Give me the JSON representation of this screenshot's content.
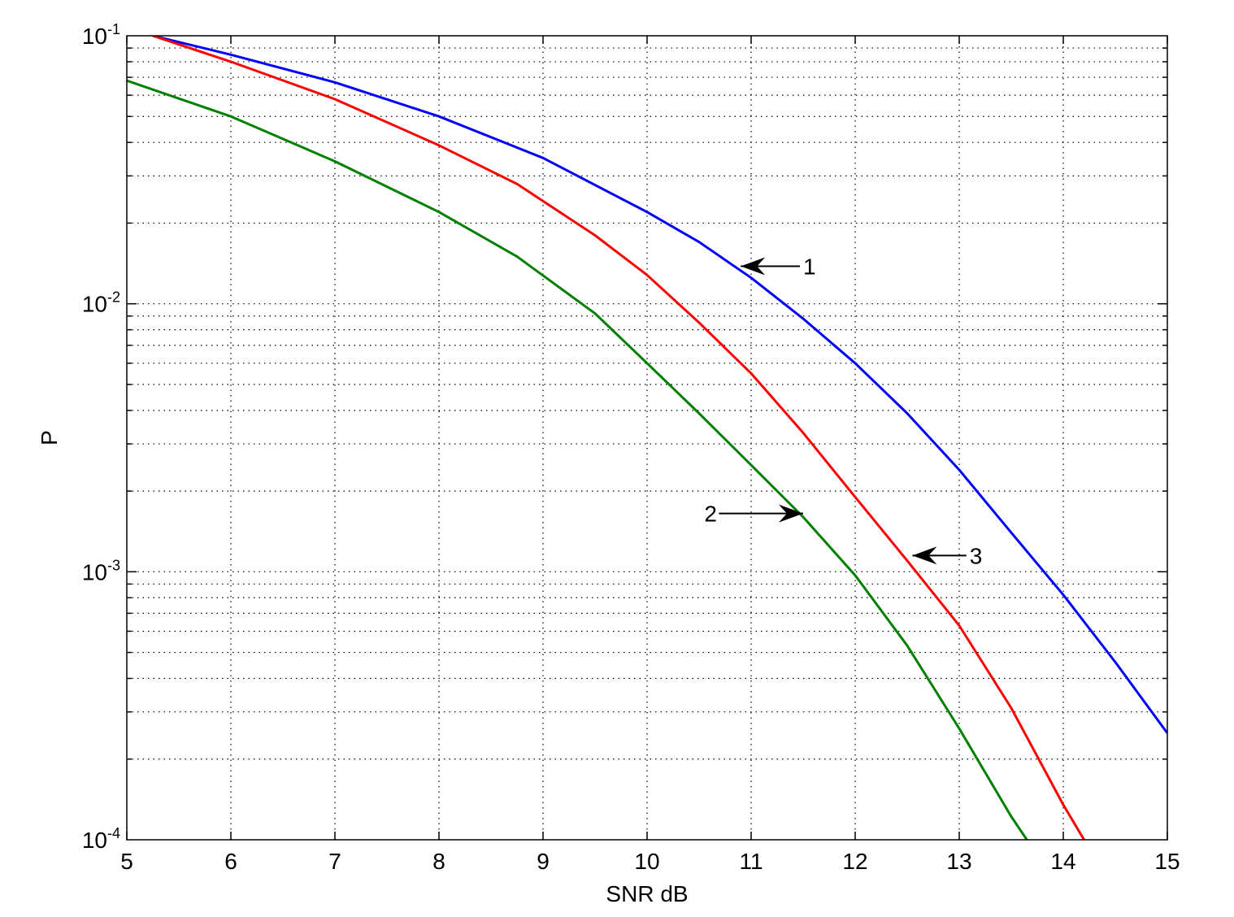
{
  "chart_data": {
    "type": "line",
    "xlabel": "SNR dB",
    "ylabel": "P",
    "xlim": [
      5,
      15
    ],
    "ylim": [
      0.0001,
      0.1
    ],
    "yscale": "log",
    "grid": true,
    "xticks": [
      5,
      6,
      7,
      8,
      9,
      10,
      11,
      12,
      13,
      14,
      15
    ],
    "yticks": [
      {
        "base": "10",
        "exp": "-1",
        "value": 0.1
      },
      {
        "base": "10",
        "exp": "-2",
        "value": 0.01
      },
      {
        "base": "10",
        "exp": "-3",
        "value": 0.001
      },
      {
        "base": "10",
        "exp": "-4",
        "value": 0.0001
      }
    ],
    "series": [
      {
        "color": "#0000ff",
        "x": [
          5.25,
          6,
          7,
          8,
          9,
          10,
          10.5,
          11,
          11.5,
          12,
          12.5,
          13,
          13.5,
          14,
          14.5,
          15
        ],
        "y": [
          0.1,
          0.085,
          0.067,
          0.05,
          0.035,
          0.022,
          0.017,
          0.0125,
          0.0088,
          0.006,
          0.0039,
          0.0024,
          0.0014,
          0.00082,
          0.00046,
          0.00025
        ]
      },
      {
        "color": "#ff0000",
        "x": [
          5.25,
          6,
          7,
          8,
          8.75,
          9.5,
          10,
          10.5,
          11,
          11.5,
          12,
          12.5,
          13,
          13.5,
          14,
          14.2
        ],
        "y": [
          0.1,
          0.08,
          0.058,
          0.039,
          0.028,
          0.018,
          0.0128,
          0.0085,
          0.0055,
          0.0033,
          0.0019,
          0.0011,
          0.00063,
          0.00031,
          0.000135,
          0.0001
        ]
      },
      {
        "color": "#008000",
        "x": [
          5,
          6,
          7,
          8,
          8.75,
          9.5,
          10,
          10.5,
          11,
          11.5,
          12,
          12.5,
          13,
          13.5,
          13.65
        ],
        "y": [
          0.068,
          0.05,
          0.034,
          0.022,
          0.015,
          0.0092,
          0.006,
          0.0039,
          0.0025,
          0.0016,
          0.00097,
          0.00053,
          0.00026,
          0.000122,
          0.0001
        ]
      }
    ],
    "annotations": [
      {
        "text": "1",
        "label_x": 11.5,
        "label_y": 0.0138,
        "tip_x": 10.9,
        "tip_y": 0.0138
      },
      {
        "text": "2",
        "label_x": 10.55,
        "label_y": 0.00165,
        "tip_x": 11.5,
        "tip_y": 0.00165
      },
      {
        "text": "3",
        "label_x": 13.1,
        "label_y": 0.00115,
        "tip_x": 12.55,
        "tip_y": 0.00115
      }
    ]
  }
}
